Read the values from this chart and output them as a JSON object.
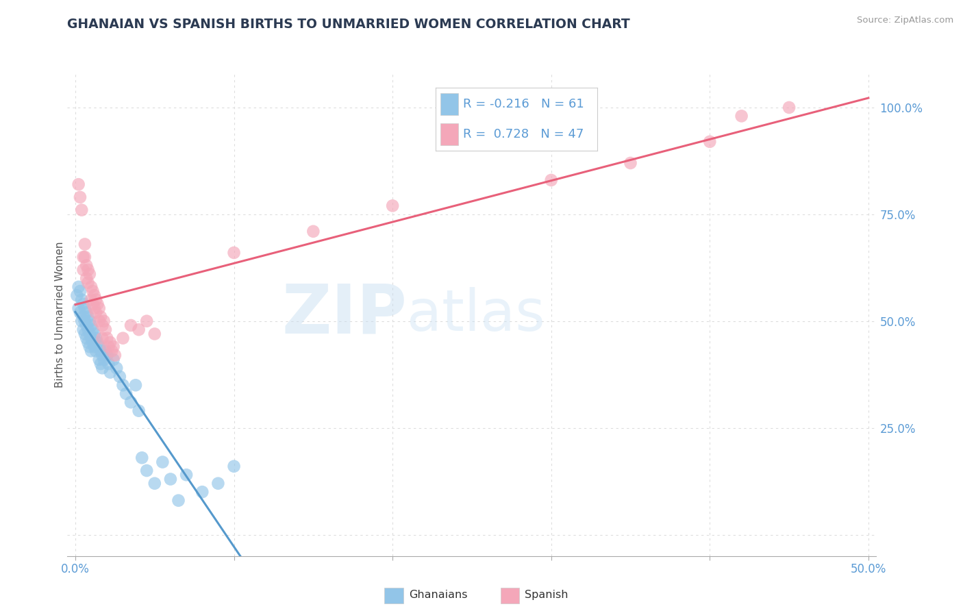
{
  "title": "GHANAIAN VS SPANISH BIRTHS TO UNMARRIED WOMEN CORRELATION CHART",
  "source": "Source: ZipAtlas.com",
  "ylabel": "Births to Unmarried Women",
  "watermark_zip": "ZIP",
  "watermark_atlas": "atlas",
  "r_blue": -0.216,
  "n_blue": 61,
  "r_pink": 0.728,
  "n_pink": 47,
  "title_color": "#2B3A52",
  "blue_color": "#92C5E8",
  "pink_color": "#F4A7B9",
  "blue_line_color": "#5599CC",
  "pink_line_color": "#E8607A",
  "source_color": "#999999",
  "axis_label_color": "#5B9BD5",
  "grid_color": "#DDDDDD",
  "blue_scatter": [
    [
      0.001,
      0.56
    ],
    [
      0.002,
      0.58
    ],
    [
      0.002,
      0.53
    ],
    [
      0.003,
      0.57
    ],
    [
      0.003,
      0.52
    ],
    [
      0.004,
      0.55
    ],
    [
      0.004,
      0.5
    ],
    [
      0.005,
      0.54
    ],
    [
      0.005,
      0.51
    ],
    [
      0.005,
      0.48
    ],
    [
      0.006,
      0.53
    ],
    [
      0.006,
      0.5
    ],
    [
      0.006,
      0.47
    ],
    [
      0.007,
      0.52
    ],
    [
      0.007,
      0.49
    ],
    [
      0.007,
      0.46
    ],
    [
      0.008,
      0.51
    ],
    [
      0.008,
      0.48
    ],
    [
      0.008,
      0.45
    ],
    [
      0.009,
      0.5
    ],
    [
      0.009,
      0.47
    ],
    [
      0.009,
      0.44
    ],
    [
      0.01,
      0.49
    ],
    [
      0.01,
      0.46
    ],
    [
      0.01,
      0.43
    ],
    [
      0.011,
      0.48
    ],
    [
      0.011,
      0.45
    ],
    [
      0.012,
      0.47
    ],
    [
      0.012,
      0.44
    ],
    [
      0.013,
      0.46
    ],
    [
      0.013,
      0.43
    ],
    [
      0.014,
      0.45
    ],
    [
      0.015,
      0.44
    ],
    [
      0.015,
      0.41
    ],
    [
      0.016,
      0.43
    ],
    [
      0.016,
      0.4
    ],
    [
      0.017,
      0.42
    ],
    [
      0.017,
      0.39
    ],
    [
      0.018,
      0.41
    ],
    [
      0.019,
      0.43
    ],
    [
      0.02,
      0.42
    ],
    [
      0.021,
      0.4
    ],
    [
      0.022,
      0.38
    ],
    [
      0.024,
      0.41
    ],
    [
      0.026,
      0.39
    ],
    [
      0.028,
      0.37
    ],
    [
      0.03,
      0.35
    ],
    [
      0.032,
      0.33
    ],
    [
      0.035,
      0.31
    ],
    [
      0.038,
      0.35
    ],
    [
      0.04,
      0.29
    ],
    [
      0.042,
      0.18
    ],
    [
      0.045,
      0.15
    ],
    [
      0.05,
      0.12
    ],
    [
      0.055,
      0.17
    ],
    [
      0.06,
      0.13
    ],
    [
      0.065,
      0.08
    ],
    [
      0.07,
      0.14
    ],
    [
      0.08,
      0.1
    ],
    [
      0.09,
      0.12
    ],
    [
      0.1,
      0.16
    ]
  ],
  "pink_scatter": [
    [
      0.002,
      0.82
    ],
    [
      0.003,
      0.79
    ],
    [
      0.004,
      0.76
    ],
    [
      0.005,
      0.65
    ],
    [
      0.005,
      0.62
    ],
    [
      0.006,
      0.68
    ],
    [
      0.006,
      0.65
    ],
    [
      0.007,
      0.63
    ],
    [
      0.007,
      0.6
    ],
    [
      0.008,
      0.62
    ],
    [
      0.008,
      0.59
    ],
    [
      0.009,
      0.61
    ],
    [
      0.01,
      0.58
    ],
    [
      0.01,
      0.55
    ],
    [
      0.011,
      0.57
    ],
    [
      0.011,
      0.54
    ],
    [
      0.012,
      0.56
    ],
    [
      0.012,
      0.53
    ],
    [
      0.013,
      0.55
    ],
    [
      0.013,
      0.52
    ],
    [
      0.014,
      0.54
    ],
    [
      0.015,
      0.53
    ],
    [
      0.015,
      0.5
    ],
    [
      0.016,
      0.51
    ],
    [
      0.017,
      0.49
    ],
    [
      0.017,
      0.46
    ],
    [
      0.018,
      0.5
    ],
    [
      0.019,
      0.48
    ],
    [
      0.02,
      0.46
    ],
    [
      0.021,
      0.44
    ],
    [
      0.022,
      0.45
    ],
    [
      0.023,
      0.43
    ],
    [
      0.024,
      0.44
    ],
    [
      0.025,
      0.42
    ],
    [
      0.03,
      0.46
    ],
    [
      0.035,
      0.49
    ],
    [
      0.04,
      0.48
    ],
    [
      0.045,
      0.5
    ],
    [
      0.05,
      0.47
    ],
    [
      0.1,
      0.66
    ],
    [
      0.15,
      0.71
    ],
    [
      0.2,
      0.77
    ],
    [
      0.3,
      0.83
    ],
    [
      0.35,
      0.87
    ],
    [
      0.4,
      0.92
    ],
    [
      0.42,
      0.98
    ],
    [
      0.45,
      1.0
    ]
  ],
  "xlim": [
    -0.005,
    0.505
  ],
  "ylim": [
    -0.05,
    1.08
  ],
  "xtick_positions": [
    0.0,
    0.1,
    0.2,
    0.3,
    0.4,
    0.5
  ],
  "xtick_labels": [
    "0.0%",
    "",
    "",
    "",
    "",
    "50.0%"
  ],
  "ytick_positions": [
    0.0,
    0.25,
    0.5,
    0.75,
    1.0
  ],
  "ytick_labels": [
    "",
    "25.0%",
    "50.0%",
    "75.0%",
    "100.0%"
  ],
  "grid_xticks": [
    0.0,
    0.1,
    0.2,
    0.3,
    0.4,
    0.5
  ],
  "grid_yticks": [
    0.0,
    0.25,
    0.5,
    0.75,
    1.0
  ]
}
